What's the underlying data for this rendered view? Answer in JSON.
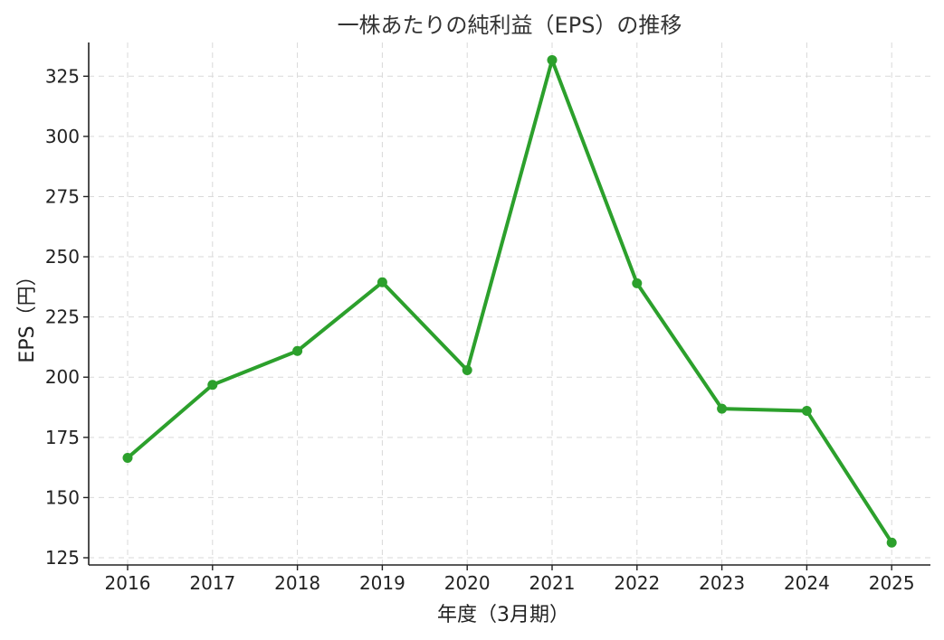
{
  "chart_data": {
    "type": "line",
    "title": "一株あたりの純利益（EPS）の推移",
    "xlabel": "年度（3月期）",
    "ylabel": "EPS（円）",
    "x": [
      "2016",
      "2017",
      "2018",
      "2019",
      "2020",
      "2021",
      "2022",
      "2023",
      "2024",
      "2025"
    ],
    "series": [
      {
        "values": [
          166.5,
          196.8,
          210.9,
          239.4,
          202.9,
          331.7,
          239.0,
          186.9,
          186.0,
          131.3
        ],
        "color": "#2ca02c"
      }
    ],
    "yticks": [
      125,
      150,
      175,
      200,
      225,
      250,
      275,
      300,
      325
    ],
    "ylim": [
      122,
      339
    ],
    "grid": true,
    "markers": "circle"
  }
}
